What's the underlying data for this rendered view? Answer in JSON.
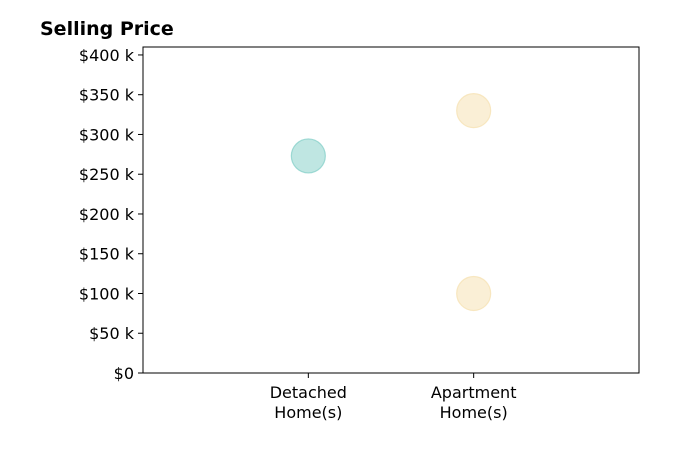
{
  "chart_data": {
    "type": "scatter",
    "title": "Selling Price",
    "xlabel": "",
    "ylabel": "",
    "categories": [
      [
        "Detached",
        "Home(s)"
      ],
      [
        "Apartment",
        "Home(s)"
      ]
    ],
    "x_range": [
      -1,
      2
    ],
    "ylim": [
      0,
      410000
    ],
    "yticks": [
      0,
      50000,
      100000,
      150000,
      200000,
      250000,
      300000,
      350000,
      400000
    ],
    "ytick_labels": [
      "$0",
      "$50 k",
      "$100 k",
      "$150 k",
      "$200 k",
      "$250 k",
      "$300 k",
      "$350 k",
      "$400 k"
    ],
    "grid": false,
    "points": [
      {
        "category": 0,
        "value": 273000,
        "color": "#7fcdc6"
      },
      {
        "category": 1,
        "value": 330000,
        "color": "#f5dfae"
      },
      {
        "category": 1,
        "value": 100000,
        "color": "#f5dfae"
      }
    ]
  }
}
